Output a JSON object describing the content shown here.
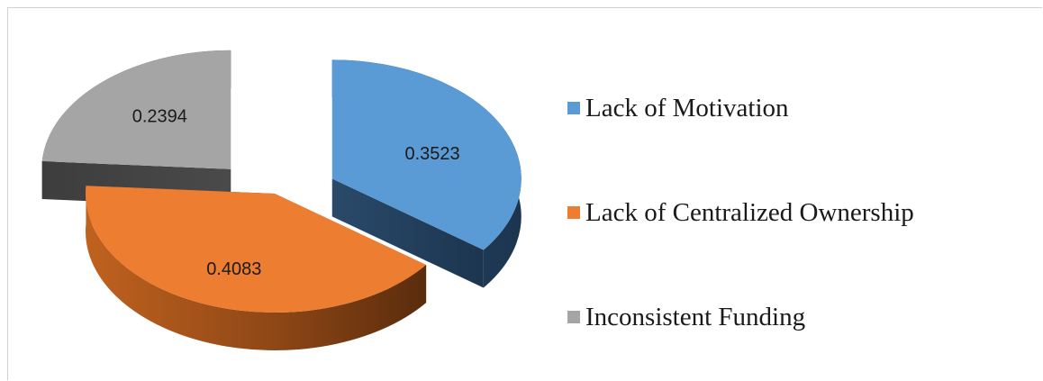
{
  "chart_data": {
    "type": "pie",
    "variant": "3d-exploded",
    "title": "",
    "slices": [
      {
        "label": "Lack of Motivation",
        "value": 0.3523,
        "value_label": "0.3523",
        "color": "#5b9bd5",
        "exploded": true
      },
      {
        "label": "Lack of Centralized Ownership",
        "value": 0.4083,
        "value_label": "0.4083",
        "color": "#ed7d31",
        "exploded": false
      },
      {
        "label": "Inconsistent Funding",
        "value": 0.2394,
        "value_label": "0.2394",
        "color": "#a5a5a5",
        "exploded": true
      }
    ],
    "legend_position": "right"
  }
}
